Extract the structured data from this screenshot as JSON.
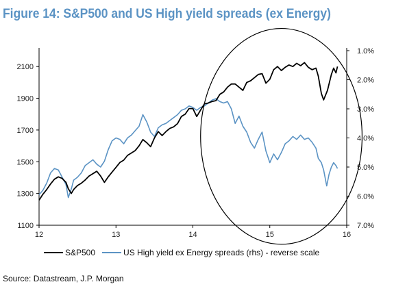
{
  "figure": {
    "title": "Figure 14: S&P500 and US High yield spreads (ex Energy)",
    "source": "Source: Datastream, J.P. Morgan"
  },
  "colors": {
    "spx": "#000000",
    "hy": "#5b93c4",
    "title": "#5b93c4",
    "circle": "#000000"
  },
  "chart_data": {
    "type": "line",
    "title": "Figure 14: S&P500 and US High yield spreads (ex Energy)",
    "xlim": [
      12,
      16
    ],
    "x_ticks": [
      "12",
      "13",
      "14",
      "15",
      "16"
    ],
    "y_left": {
      "lim": [
        1100,
        2200
      ],
      "ticks": [
        "1100",
        "1300",
        "1500",
        "1700",
        "1900",
        "2100"
      ]
    },
    "y_right": {
      "lim": [
        1.0,
        7.0
      ],
      "reversed": true,
      "ticks": [
        "1.0%",
        "2.0%",
        "3.0%",
        "4.0%",
        "5.0%",
        "6.0%",
        "7.0%"
      ]
    },
    "legend": {
      "position": "bottom"
    },
    "annotation": {
      "shape": "circle",
      "x_center": 15.15,
      "y_center": 1660,
      "x_radius": 1.05,
      "y_radius": 680
    },
    "series": [
      {
        "name": "S&P500",
        "axis": "left",
        "points": [
          [
            12.0,
            1258
          ],
          [
            12.05,
            1295
          ],
          [
            12.1,
            1325
          ],
          [
            12.15,
            1360
          ],
          [
            12.2,
            1390
          ],
          [
            12.25,
            1405
          ],
          [
            12.3,
            1395
          ],
          [
            12.35,
            1370
          ],
          [
            12.38,
            1330
          ],
          [
            12.42,
            1300
          ],
          [
            12.45,
            1325
          ],
          [
            12.5,
            1350
          ],
          [
            12.55,
            1365
          ],
          [
            12.6,
            1385
          ],
          [
            12.65,
            1410
          ],
          [
            12.7,
            1425
          ],
          [
            12.75,
            1440
          ],
          [
            12.8,
            1410
          ],
          [
            12.85,
            1370
          ],
          [
            12.9,
            1405
          ],
          [
            12.95,
            1435
          ],
          [
            13.0,
            1465
          ],
          [
            13.05,
            1495
          ],
          [
            13.1,
            1510
          ],
          [
            13.15,
            1540
          ],
          [
            13.2,
            1555
          ],
          [
            13.25,
            1570
          ],
          [
            13.3,
            1600
          ],
          [
            13.35,
            1640
          ],
          [
            13.4,
            1620
          ],
          [
            13.45,
            1595
          ],
          [
            13.5,
            1650
          ],
          [
            13.55,
            1690
          ],
          [
            13.6,
            1665
          ],
          [
            13.65,
            1690
          ],
          [
            13.7,
            1710
          ],
          [
            13.75,
            1720
          ],
          [
            13.8,
            1740
          ],
          [
            13.85,
            1785
          ],
          [
            13.9,
            1800
          ],
          [
            13.95,
            1835
          ],
          [
            14.0,
            1835
          ],
          [
            14.05,
            1785
          ],
          [
            14.1,
            1825
          ],
          [
            14.15,
            1865
          ],
          [
            14.2,
            1870
          ],
          [
            14.25,
            1880
          ],
          [
            14.3,
            1885
          ],
          [
            14.35,
            1925
          ],
          [
            14.4,
            1940
          ],
          [
            14.45,
            1970
          ],
          [
            14.5,
            1990
          ],
          [
            14.55,
            1990
          ],
          [
            14.6,
            1970
          ],
          [
            14.65,
            1950
          ],
          [
            14.7,
            2000
          ],
          [
            14.75,
            2010
          ],
          [
            14.8,
            2030
          ],
          [
            14.85,
            2050
          ],
          [
            14.9,
            2055
          ],
          [
            14.95,
            1995
          ],
          [
            15.0,
            2020
          ],
          [
            15.05,
            2080
          ],
          [
            15.1,
            2100
          ],
          [
            15.15,
            2075
          ],
          [
            15.2,
            2095
          ],
          [
            15.25,
            2110
          ],
          [
            15.3,
            2100
          ],
          [
            15.35,
            2120
          ],
          [
            15.4,
            2105
          ],
          [
            15.45,
            2125
          ],
          [
            15.5,
            2095
          ],
          [
            15.55,
            2080
          ],
          [
            15.6,
            2090
          ],
          [
            15.63,
            2040
          ],
          [
            15.67,
            1930
          ],
          [
            15.7,
            1890
          ],
          [
            15.75,
            1950
          ],
          [
            15.8,
            2050
          ],
          [
            15.83,
            2090
          ],
          [
            15.86,
            2060
          ],
          [
            15.88,
            2100
          ]
        ]
      },
      {
        "name": "US High yield ex Energy spreads (rhs) - reverse scale",
        "axis": "right",
        "points": [
          [
            12.0,
            5.95
          ],
          [
            12.05,
            5.8
          ],
          [
            12.1,
            5.55
          ],
          [
            12.15,
            5.2
          ],
          [
            12.2,
            5.05
          ],
          [
            12.25,
            5.1
          ],
          [
            12.3,
            5.35
          ],
          [
            12.35,
            5.6
          ],
          [
            12.38,
            6.05
          ],
          [
            12.42,
            5.75
          ],
          [
            12.45,
            5.45
          ],
          [
            12.5,
            5.35
          ],
          [
            12.55,
            5.2
          ],
          [
            12.6,
            4.95
          ],
          [
            12.65,
            4.85
          ],
          [
            12.7,
            4.75
          ],
          [
            12.75,
            4.9
          ],
          [
            12.8,
            5.0
          ],
          [
            12.85,
            4.8
          ],
          [
            12.9,
            4.4
          ],
          [
            12.95,
            4.1
          ],
          [
            13.0,
            4.0
          ],
          [
            13.05,
            4.05
          ],
          [
            13.1,
            4.2
          ],
          [
            13.15,
            4.0
          ],
          [
            13.2,
            3.9
          ],
          [
            13.25,
            3.75
          ],
          [
            13.3,
            3.6
          ],
          [
            13.35,
            3.2
          ],
          [
            13.4,
            3.45
          ],
          [
            13.45,
            3.8
          ],
          [
            13.5,
            3.95
          ],
          [
            13.55,
            3.65
          ],
          [
            13.6,
            3.55
          ],
          [
            13.65,
            3.5
          ],
          [
            13.7,
            3.4
          ],
          [
            13.75,
            3.3
          ],
          [
            13.8,
            3.2
          ],
          [
            13.85,
            3.05
          ],
          [
            13.9,
            3.0
          ],
          [
            13.95,
            2.9
          ],
          [
            14.0,
            2.95
          ],
          [
            14.05,
            3.05
          ],
          [
            14.1,
            2.95
          ],
          [
            14.15,
            2.9
          ],
          [
            14.2,
            2.8
          ],
          [
            14.25,
            2.7
          ],
          [
            14.3,
            2.65
          ],
          [
            14.35,
            2.75
          ],
          [
            14.4,
            2.8
          ],
          [
            14.45,
            2.75
          ],
          [
            14.5,
            3.0
          ],
          [
            14.55,
            3.5
          ],
          [
            14.6,
            3.25
          ],
          [
            14.65,
            3.6
          ],
          [
            14.7,
            3.8
          ],
          [
            14.75,
            4.15
          ],
          [
            14.8,
            4.35
          ],
          [
            14.85,
            4.05
          ],
          [
            14.9,
            3.8
          ],
          [
            14.95,
            4.45
          ],
          [
            15.0,
            4.85
          ],
          [
            15.05,
            4.55
          ],
          [
            15.1,
            4.75
          ],
          [
            15.15,
            4.5
          ],
          [
            15.2,
            4.2
          ],
          [
            15.25,
            4.1
          ],
          [
            15.3,
            3.95
          ],
          [
            15.35,
            4.05
          ],
          [
            15.4,
            3.9
          ],
          [
            15.45,
            4.05
          ],
          [
            15.5,
            4.0
          ],
          [
            15.55,
            4.15
          ],
          [
            15.6,
            4.35
          ],
          [
            15.63,
            4.7
          ],
          [
            15.67,
            4.85
          ],
          [
            15.7,
            5.1
          ],
          [
            15.74,
            5.65
          ],
          [
            15.77,
            5.25
          ],
          [
            15.8,
            5.0
          ],
          [
            15.83,
            4.85
          ],
          [
            15.86,
            4.95
          ],
          [
            15.88,
            5.05
          ]
        ]
      }
    ]
  }
}
